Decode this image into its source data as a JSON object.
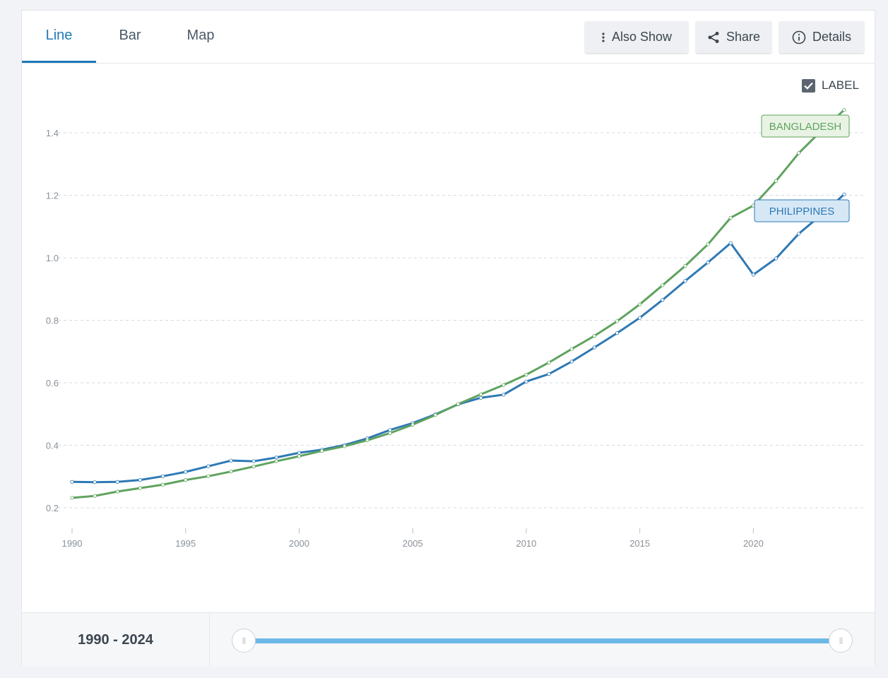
{
  "tabs": [
    {
      "label": "Line",
      "active": true
    },
    {
      "label": "Bar",
      "active": false
    },
    {
      "label": "Map",
      "active": false
    }
  ],
  "toolbar": {
    "also_show_label": "Also Show",
    "share_label": "Share",
    "details_label": "Details"
  },
  "label_toggle": {
    "text": "LABEL",
    "checked": true
  },
  "range": {
    "text": "1990 - 2024",
    "start": 1990,
    "end": 2024
  },
  "colors": {
    "philippines": "#2e79b5",
    "bangladesh": "#5fa35e",
    "slider": "#6cb8e6",
    "active_tab": "#1f79b8"
  },
  "chart_data": {
    "type": "line",
    "title": "",
    "xlabel": "",
    "ylabel": "",
    "xlim": [
      1990,
      2024
    ],
    "ylim": [
      0.2,
      1.5
    ],
    "x_ticks": [
      1990,
      1995,
      2000,
      2005,
      2010,
      2015,
      2020
    ],
    "y_ticks": [
      0.2,
      0.4,
      0.6,
      0.8,
      1.0,
      1.2,
      1.4
    ],
    "y_tick_labels": [
      "0.2",
      "0.4",
      "0.6",
      "0.8",
      "1.0",
      "1.2",
      "1.4"
    ],
    "grid": true,
    "x": [
      1990,
      1991,
      1992,
      1993,
      1994,
      1995,
      1996,
      1997,
      1998,
      1999,
      2000,
      2001,
      2002,
      2003,
      2004,
      2005,
      2006,
      2007,
      2008,
      2009,
      2010,
      2011,
      2012,
      2013,
      2014,
      2015,
      2016,
      2017,
      2018,
      2019,
      2020,
      2021,
      2022,
      2023,
      2024
    ],
    "series": [
      {
        "name": "PHILIPPINES",
        "color": "#2e79b5",
        "values": [
          0.283,
          0.282,
          0.283,
          0.289,
          0.301,
          0.315,
          0.333,
          0.351,
          0.349,
          0.361,
          0.376,
          0.386,
          0.401,
          0.422,
          0.449,
          0.471,
          0.499,
          0.531,
          0.552,
          0.562,
          0.604,
          0.628,
          0.668,
          0.713,
          0.759,
          0.808,
          0.865,
          0.926,
          0.985,
          1.047,
          0.946,
          0.998,
          1.077,
          1.138,
          1.203
        ]
      },
      {
        "name": "BANGLADESH",
        "color": "#5fa35e",
        "values": [
          0.232,
          0.238,
          0.252,
          0.263,
          0.274,
          0.289,
          0.301,
          0.316,
          0.332,
          0.349,
          0.365,
          0.382,
          0.397,
          0.416,
          0.439,
          0.466,
          0.497,
          0.532,
          0.563,
          0.593,
          0.626,
          0.665,
          0.708,
          0.75,
          0.797,
          0.851,
          0.912,
          0.974,
          1.043,
          1.128,
          1.167,
          1.246,
          1.335,
          1.407,
          1.473
        ]
      }
    ]
  }
}
